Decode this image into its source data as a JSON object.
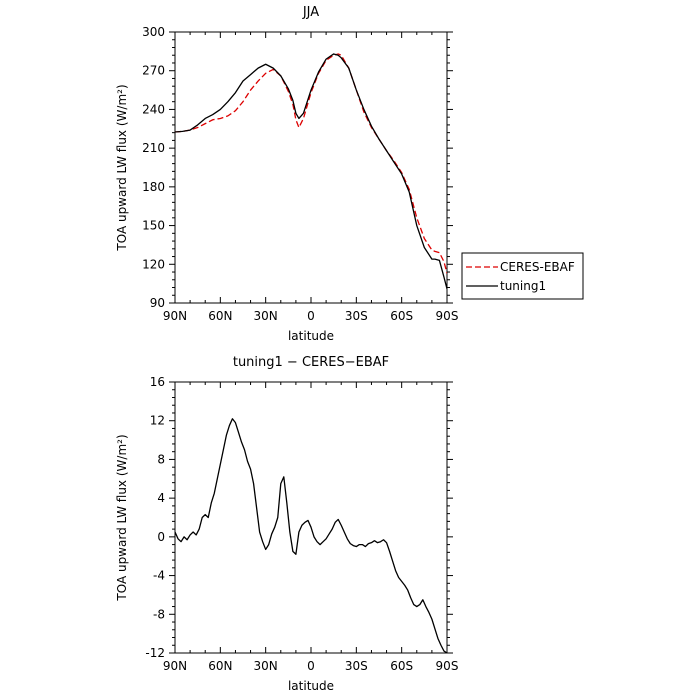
{
  "chart_data": [
    {
      "type": "line",
      "title": "JJA",
      "xlabel": "latitude",
      "ylabel": "TOA upward LW flux (W/m²)",
      "xlim": [
        90,
        -90
      ],
      "ylim": [
        90,
        300
      ],
      "xticks": [
        {
          "value": 90,
          "label": "90N"
        },
        {
          "value": 60,
          "label": "60N"
        },
        {
          "value": 30,
          "label": "30N"
        },
        {
          "value": 0,
          "label": "0"
        },
        {
          "value": -30,
          "label": "30S"
        },
        {
          "value": -60,
          "label": "60S"
        },
        {
          "value": -90,
          "label": "90S"
        }
      ],
      "yticks": [
        90,
        120,
        150,
        180,
        210,
        240,
        270,
        300
      ],
      "legend": "right",
      "series": [
        {
          "name": "CERES-EBAF",
          "color": "#dd0000",
          "dash": "dashed",
          "x": [
            90,
            85,
            80,
            75,
            70,
            65,
            60,
            55,
            50,
            45,
            40,
            35,
            30,
            25,
            20,
            15,
            12,
            10,
            8,
            5,
            0,
            -5,
            -10,
            -15,
            -18,
            -20,
            -25,
            -30,
            -35,
            -40,
            -45,
            -50,
            -55,
            -60,
            -65,
            -70,
            -75,
            -80,
            -82,
            -85,
            -88,
            -90
          ],
          "y": [
            222.5,
            223,
            224,
            226,
            229,
            232,
            233,
            235,
            239,
            246,
            255,
            262,
            268,
            271,
            266,
            254,
            244,
            232,
            226,
            233,
            253,
            268,
            278,
            282,
            283,
            282,
            272,
            255,
            238,
            226,
            217,
            208,
            200,
            191,
            178,
            156,
            140,
            131,
            130,
            129,
            122,
            113
          ]
        },
        {
          "name": "tuning1",
          "color": "#000000",
          "dash": "solid",
          "x": [
            90,
            85,
            80,
            75,
            70,
            65,
            60,
            55,
            50,
            45,
            40,
            35,
            30,
            25,
            20,
            15,
            12,
            10,
            8,
            5,
            0,
            -5,
            -10,
            -15,
            -18,
            -20,
            -25,
            -30,
            -35,
            -40,
            -45,
            -50,
            -55,
            -60,
            -65,
            -70,
            -75,
            -80,
            -82,
            -85,
            -88,
            -90
          ],
          "y": [
            222.5,
            223,
            224,
            228,
            233,
            236,
            240,
            246,
            253,
            262,
            267,
            272,
            275,
            272,
            266,
            256,
            247,
            237,
            233,
            237,
            255,
            269,
            279,
            283,
            282,
            280,
            272,
            255,
            240,
            227,
            217,
            208,
            199,
            190,
            176,
            150,
            133,
            124,
            124,
            123,
            110,
            101
          ]
        }
      ]
    },
    {
      "type": "line",
      "title": "tuning1 − CERES−EBAF",
      "xlabel": "latitude",
      "ylabel": "TOA upward LW flux (W/m²)",
      "xlim": [
        90,
        -90
      ],
      "ylim": [
        -12,
        16
      ],
      "xticks": [
        {
          "value": 90,
          "label": "90N"
        },
        {
          "value": 60,
          "label": "60N"
        },
        {
          "value": 30,
          "label": "30N"
        },
        {
          "value": 0,
          "label": "0"
        },
        {
          "value": -30,
          "label": "30S"
        },
        {
          "value": -60,
          "label": "60S"
        },
        {
          "value": -90,
          "label": "90S"
        }
      ],
      "yticks": [
        -12,
        -8,
        -4,
        0,
        4,
        8,
        12,
        16
      ],
      "series": [
        {
          "name": "",
          "color": "#000000",
          "dash": "solid",
          "x": [
            90,
            88,
            86,
            84,
            82,
            80,
            78,
            76,
            74,
            72,
            70,
            68,
            66,
            64,
            62,
            60,
            58,
            56,
            54,
            52,
            50,
            48,
            46,
            44,
            42,
            40,
            38,
            36,
            34,
            32,
            30,
            28,
            26,
            24,
            22,
            20,
            18,
            16,
            14,
            12,
            10,
            8,
            6,
            4,
            2,
            0,
            -2,
            -4,
            -6,
            -8,
            -10,
            -12,
            -14,
            -16,
            -18,
            -20,
            -22,
            -24,
            -26,
            -28,
            -30,
            -32,
            -34,
            -36,
            -38,
            -40,
            -42,
            -44,
            -46,
            -48,
            -50,
            -52,
            -54,
            -56,
            -58,
            -60,
            -62,
            -64,
            -66,
            -68,
            -70,
            -72,
            -74,
            -76,
            -78,
            -80,
            -82,
            -84,
            -86,
            -88,
            -90
          ],
          "y": [
            0.5,
            -0.2,
            -0.5,
            0.0,
            -0.3,
            0.2,
            0.5,
            0.2,
            0.8,
            2.0,
            2.3,
            2.0,
            3.5,
            4.5,
            6.0,
            7.5,
            9.0,
            10.5,
            11.5,
            12.2,
            11.8,
            10.8,
            9.8,
            9.0,
            7.8,
            7.0,
            5.5,
            3.0,
            0.5,
            -0.5,
            -1.3,
            -0.8,
            0.3,
            1.0,
            2.0,
            5.5,
            6.2,
            3.5,
            0.5,
            -1.5,
            -1.8,
            0.5,
            1.2,
            1.5,
            1.7,
            1.0,
            0.0,
            -0.5,
            -0.8,
            -0.5,
            -0.2,
            0.3,
            0.8,
            1.5,
            1.8,
            1.2,
            0.5,
            -0.2,
            -0.7,
            -0.9,
            -1.0,
            -0.8,
            -0.8,
            -1.0,
            -0.7,
            -0.6,
            -0.4,
            -0.6,
            -0.5,
            -0.3,
            -0.6,
            -1.5,
            -2.5,
            -3.5,
            -4.2,
            -4.6,
            -5.0,
            -5.5,
            -6.3,
            -7.0,
            -7.2,
            -7.0,
            -6.5,
            -7.2,
            -7.8,
            -8.5,
            -9.5,
            -10.5,
            -11.2,
            -11.8,
            -12.0
          ]
        }
      ]
    }
  ]
}
